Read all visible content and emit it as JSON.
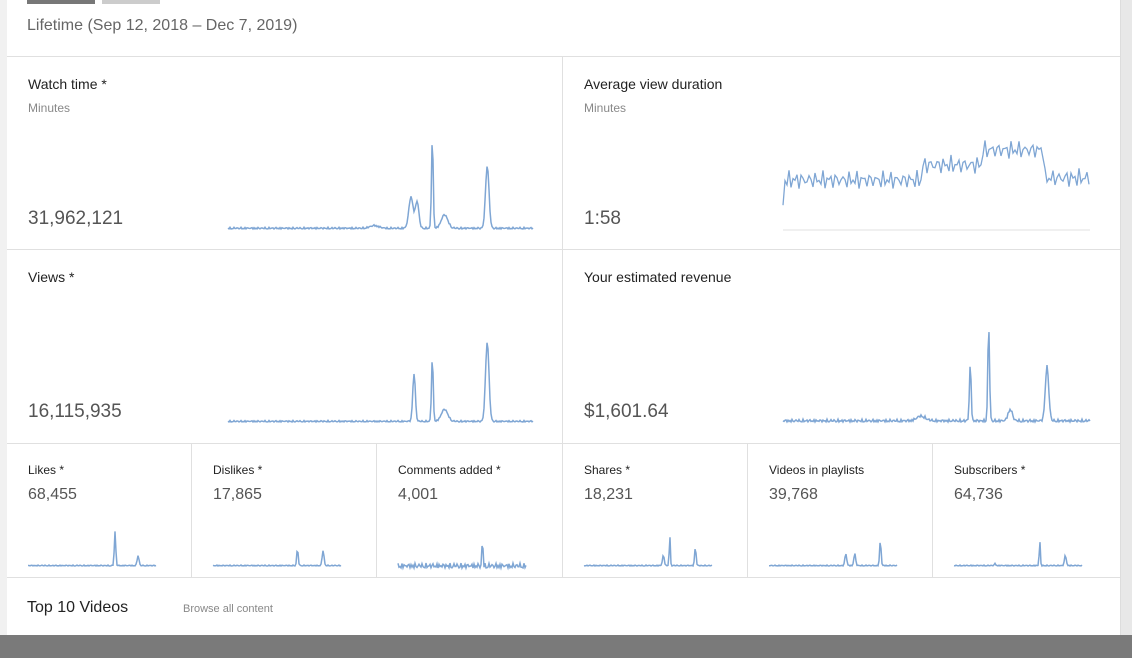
{
  "header": {
    "period": "Lifetime (Sep 12, 2018 – Dec 7, 2019)"
  },
  "cards": [
    {
      "title": "Watch time *",
      "unit": "Minutes",
      "value": "31,962,121"
    },
    {
      "title": "Average view duration",
      "unit": "Minutes",
      "value": "1:58"
    },
    {
      "title": "Views *",
      "value": "16,115,935"
    },
    {
      "title": "Your estimated revenue",
      "value": "$1,601.64"
    }
  ],
  "small_cards": [
    {
      "title": "Likes *",
      "value": "68,455"
    },
    {
      "title": "Dislikes *",
      "value": "17,865"
    },
    {
      "title": "Comments added *",
      "value": "4,001"
    },
    {
      "title": "Shares *",
      "value": "18,231"
    },
    {
      "title": "Videos in playlists",
      "value": "39,768"
    },
    {
      "title": "Subscribers *",
      "value": "64,736"
    }
  ],
  "footer": {
    "title": "Top 10 Videos",
    "link": "Browse all content"
  }
}
